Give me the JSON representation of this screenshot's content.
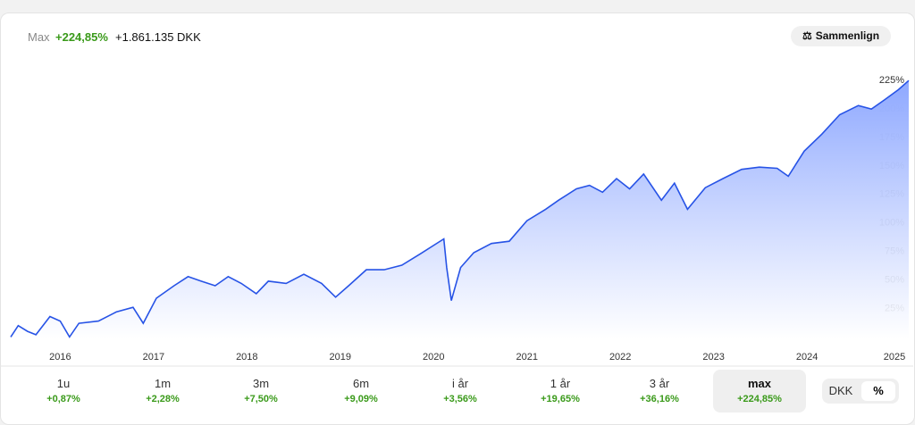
{
  "header": {
    "range": "Max",
    "change_pct": "+224,85%",
    "change_abs": "+1.861.135 DKK",
    "compare_button": "Sammenlign"
  },
  "chart_data": {
    "type": "area",
    "x": [
      2015.47,
      2015.55,
      2015.65,
      2015.74,
      2015.89,
      2016.0,
      2016.1,
      2016.2,
      2016.41,
      2016.6,
      2016.78,
      2016.89,
      2017.03,
      2017.22,
      2017.37,
      2017.51,
      2017.66,
      2017.8,
      2017.94,
      2018.1,
      2018.23,
      2018.42,
      2018.61,
      2018.8,
      2018.95,
      2019.09,
      2019.28,
      2019.47,
      2019.66,
      2019.86,
      2020.05,
      2020.11,
      2020.14,
      2020.19,
      2020.29,
      2020.43,
      2020.62,
      2020.81,
      2021.0,
      2021.2,
      2021.34,
      2021.53,
      2021.67,
      2021.81,
      2021.96,
      2022.1,
      2022.25,
      2022.44,
      2022.58,
      2022.72,
      2022.91,
      2023.1,
      2023.3,
      2023.49,
      2023.68,
      2023.8,
      2023.97,
      2024.16,
      2024.35,
      2024.55,
      2024.69,
      2024.83,
      2024.98,
      2025.09
    ],
    "series": [
      {
        "color": "#2753e6",
        "values": [
          0,
          10,
          5,
          2,
          18,
          14,
          0,
          12,
          14,
          22,
          26,
          12,
          34,
          45,
          53,
          49,
          45,
          53,
          47,
          38,
          49,
          47,
          55,
          47,
          35,
          45,
          59,
          59,
          63,
          73,
          83,
          86,
          61,
          32,
          61,
          74,
          82,
          84,
          102,
          112,
          120,
          130,
          133,
          127,
          139,
          130,
          143,
          120,
          135,
          112,
          131,
          139,
          147,
          149,
          148,
          141,
          163,
          178,
          195,
          203,
          200,
          208,
          217,
          225
        ]
      }
    ],
    "xlim": [
      2015.47,
      2025.09
    ],
    "xticks": [
      2016,
      2017,
      2018,
      2019,
      2020,
      2021,
      2022,
      2023,
      2024,
      2025
    ],
    "ylim": [
      -2,
      240
    ],
    "yticks": [
      {
        "value": 25,
        "label": "25%"
      },
      {
        "value": 50,
        "label": "50%"
      },
      {
        "value": 75,
        "label": "75%"
      },
      {
        "value": 100,
        "label": "100%"
      },
      {
        "value": 125,
        "label": "125%"
      },
      {
        "value": 150,
        "label": "150%"
      },
      {
        "value": 175,
        "label": "175%"
      },
      {
        "value": 200,
        "label": "200%"
      },
      {
        "value": 225,
        "label": "225%"
      }
    ]
  },
  "periods": [
    {
      "label": "1u",
      "change": "+0,87%"
    },
    {
      "label": "1m",
      "change": "+2,28%"
    },
    {
      "label": "3m",
      "change": "+7,50%"
    },
    {
      "label": "6m",
      "change": "+9,09%"
    },
    {
      "label": "i år",
      "change": "+3,56%"
    },
    {
      "label": "1 år",
      "change": "+19,65%"
    },
    {
      "label": "3 år",
      "change": "+36,16%"
    },
    {
      "label": "max",
      "change": "+224,85%"
    }
  ],
  "toggle": [
    "DKK",
    "%"
  ]
}
